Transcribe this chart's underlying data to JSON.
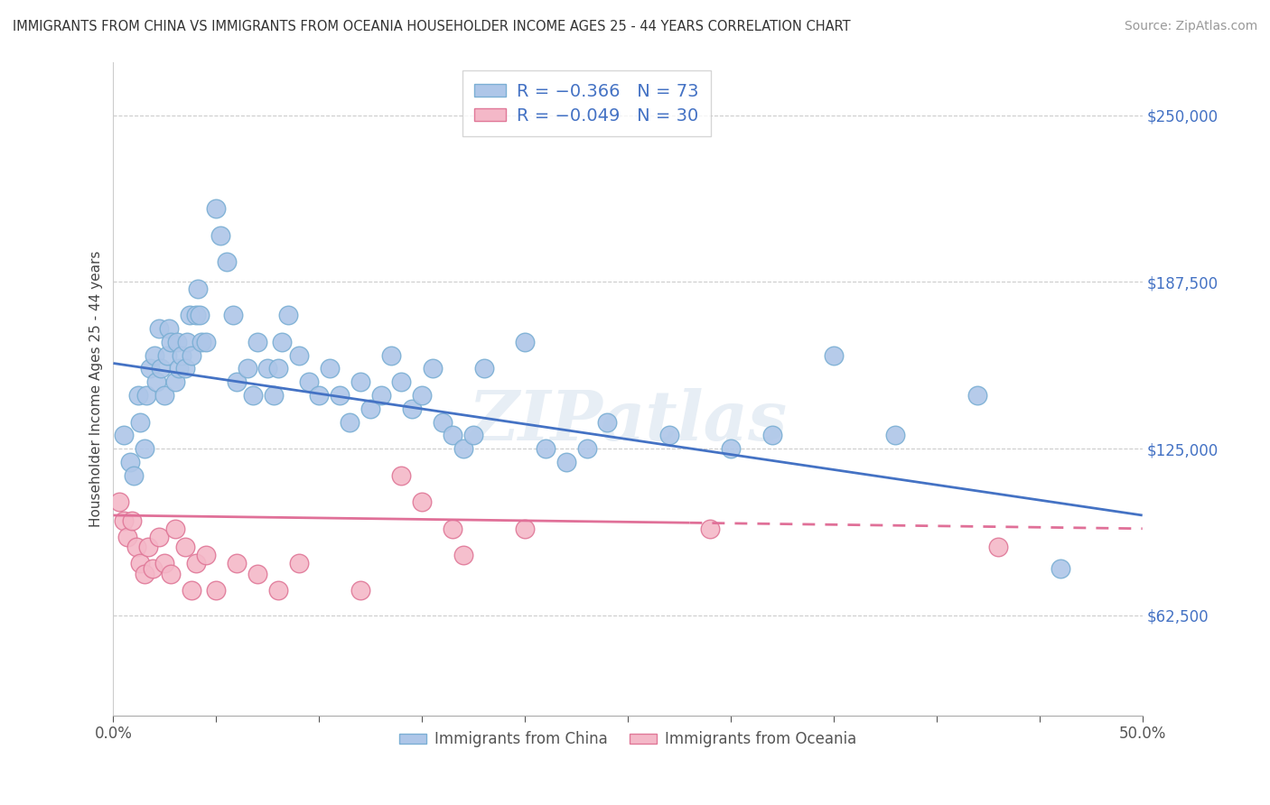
{
  "title": "IMMIGRANTS FROM CHINA VS IMMIGRANTS FROM OCEANIA HOUSEHOLDER INCOME AGES 25 - 44 YEARS CORRELATION CHART",
  "source": "Source: ZipAtlas.com",
  "ylabel": "Householder Income Ages 25 - 44 years",
  "xlim": [
    0.0,
    0.5
  ],
  "ylim": [
    25000,
    270000
  ],
  "yticks": [
    62500,
    125000,
    187500,
    250000
  ],
  "ytick_labels": [
    "$62,500",
    "$125,000",
    "$187,500",
    "$250,000"
  ],
  "xticks": [
    0.0,
    0.05,
    0.1,
    0.15,
    0.2,
    0.25,
    0.3,
    0.35,
    0.4,
    0.45,
    0.5
  ],
  "china_color": "#aec6e8",
  "china_edge_color": "#7bafd4",
  "oceania_color": "#f4b8c8",
  "oceania_edge_color": "#e07898",
  "china_line_color": "#4472c4",
  "oceania_line_color": "#e07098",
  "legend_R_china": "R = −0.366",
  "legend_N_china": "N = 73",
  "legend_R_oceania": "R = −0.049",
  "legend_N_oceania": "N = 30",
  "china_x": [
    0.005,
    0.008,
    0.01,
    0.012,
    0.013,
    0.015,
    0.016,
    0.018,
    0.02,
    0.021,
    0.022,
    0.023,
    0.025,
    0.026,
    0.027,
    0.028,
    0.03,
    0.031,
    0.032,
    0.033,
    0.035,
    0.036,
    0.037,
    0.038,
    0.04,
    0.041,
    0.042,
    0.043,
    0.045,
    0.05,
    0.052,
    0.055,
    0.058,
    0.06,
    0.065,
    0.068,
    0.07,
    0.075,
    0.078,
    0.08,
    0.082,
    0.085,
    0.09,
    0.095,
    0.1,
    0.105,
    0.11,
    0.115,
    0.12,
    0.125,
    0.13,
    0.135,
    0.14,
    0.145,
    0.15,
    0.155,
    0.16,
    0.165,
    0.17,
    0.175,
    0.18,
    0.2,
    0.21,
    0.22,
    0.23,
    0.24,
    0.27,
    0.3,
    0.32,
    0.35,
    0.38,
    0.42,
    0.46
  ],
  "china_y": [
    130000,
    120000,
    115000,
    145000,
    135000,
    125000,
    145000,
    155000,
    160000,
    150000,
    170000,
    155000,
    145000,
    160000,
    170000,
    165000,
    150000,
    165000,
    155000,
    160000,
    155000,
    165000,
    175000,
    160000,
    175000,
    185000,
    175000,
    165000,
    165000,
    215000,
    205000,
    195000,
    175000,
    150000,
    155000,
    145000,
    165000,
    155000,
    145000,
    155000,
    165000,
    175000,
    160000,
    150000,
    145000,
    155000,
    145000,
    135000,
    150000,
    140000,
    145000,
    160000,
    150000,
    140000,
    145000,
    155000,
    135000,
    130000,
    125000,
    130000,
    155000,
    165000,
    125000,
    120000,
    125000,
    135000,
    130000,
    125000,
    130000,
    160000,
    130000,
    145000,
    80000
  ],
  "oceania_x": [
    0.003,
    0.005,
    0.007,
    0.009,
    0.011,
    0.013,
    0.015,
    0.017,
    0.019,
    0.022,
    0.025,
    0.028,
    0.03,
    0.035,
    0.038,
    0.04,
    0.045,
    0.05,
    0.06,
    0.07,
    0.08,
    0.09,
    0.12,
    0.14,
    0.15,
    0.165,
    0.17,
    0.2,
    0.29,
    0.43
  ],
  "oceania_y": [
    105000,
    98000,
    92000,
    98000,
    88000,
    82000,
    78000,
    88000,
    80000,
    92000,
    82000,
    78000,
    95000,
    88000,
    72000,
    82000,
    85000,
    72000,
    82000,
    78000,
    72000,
    82000,
    72000,
    115000,
    105000,
    95000,
    85000,
    95000,
    95000,
    88000
  ],
  "china_line_x": [
    0.0,
    0.5
  ],
  "china_line_y": [
    157000,
    100000
  ],
  "oceania_line_x": [
    0.0,
    0.5
  ],
  "oceania_line_y": [
    100000,
    95000
  ],
  "watermark": "ZIPatlas",
  "background_color": "#ffffff",
  "grid_color": "#cccccc"
}
